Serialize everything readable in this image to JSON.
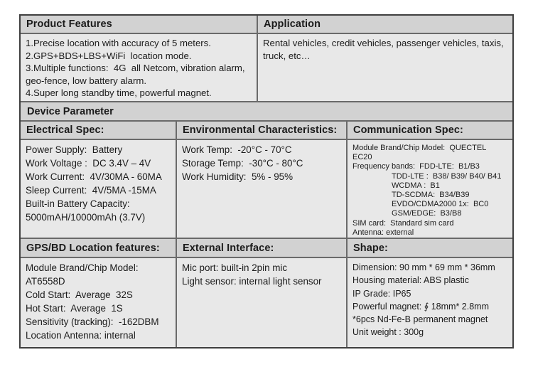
{
  "colors": {
    "outer_border": "#3f3f3f",
    "inner_border": "#6a6a6a",
    "header_bg": "#d2d2d2",
    "cell_bg": "#e8e8e8",
    "text": "#1b1b1b"
  },
  "top": {
    "features": {
      "title": "Product Features",
      "lines": [
        "1.Precise location with accuracy of 5 meters.",
        "2.GPS+BDS+LBS+WiFi  location mode.",
        "3.Multiple functions:  4G  all Netcom, vibration alarm,",
        "geo-fence, low battery alarm.",
        "4.Super long standby time, powerful magnet."
      ]
    },
    "application": {
      "title": "Application",
      "lines": [
        "Rental vehicles, credit vehicles, passenger vehicles, taxis,",
        "truck, etc…"
      ]
    }
  },
  "device_parameter": {
    "title": "Device Parameter"
  },
  "middle": {
    "electrical": {
      "title": "Electrical Spec:",
      "lines": [
        "Power Supply:  Battery",
        "Work Voltage :  DC 3.4V – 4V",
        "Work Current:  4V/30MA - 60MA",
        "Sleep Current:  4V/5MA -15MA",
        "Built-in Battery Capacity:",
        "5000mAH/10000mAh (3.7V)"
      ]
    },
    "environmental": {
      "title": "Environmental Characteristics:",
      "lines": [
        "Work Temp:  -20°C - 70°C",
        "Storage Temp:  -30°C - 80°C",
        "Work Humidity:  5% - 95%"
      ]
    },
    "communication": {
      "title": "Communication Spec:",
      "lines": [
        "Module Brand/Chip Model:  QUECTEL",
        "EC20",
        "Frequency bands:  FDD-LTE:  B1/B3",
        "                  TDD-LTE :  B38/ B39/ B40/ B41",
        "                  WCDMA :  B1",
        "                  TD-SCDMA:  B34/B39",
        "                  EVDO/CDMA2000 1x:  BC0",
        "                  GSM/EDGE:  B3/B8",
        "SIM card:  Standard sim card",
        "Antenna: external"
      ]
    }
  },
  "bottom": {
    "gps": {
      "title": "GPS/BD Location features:",
      "lines": [
        "Module Brand/Chip Model:",
        "AT6558D",
        "Cold Start:  Average  32S",
        "Hot Start:  Average  1S",
        "Sensitivity (tracking):  -162DBM",
        "Location Antenna: internal"
      ]
    },
    "external": {
      "title": "External Interface:",
      "lines": [
        "Mic port: built-in 2pin mic",
        "Light sensor: internal light sensor"
      ]
    },
    "shape": {
      "title": "Shape:",
      "lines": [
        "Dimension: 90 mm * 69 mm * 36mm",
        "Housing material: ABS plastic",
        "IP Grade: IP65",
        "Powerful magnet: ∮ 18mm* 2.8mm",
        "*6pcs Nd-Fe-B permanent magnet",
        "Unit weight : 300g"
      ]
    }
  }
}
